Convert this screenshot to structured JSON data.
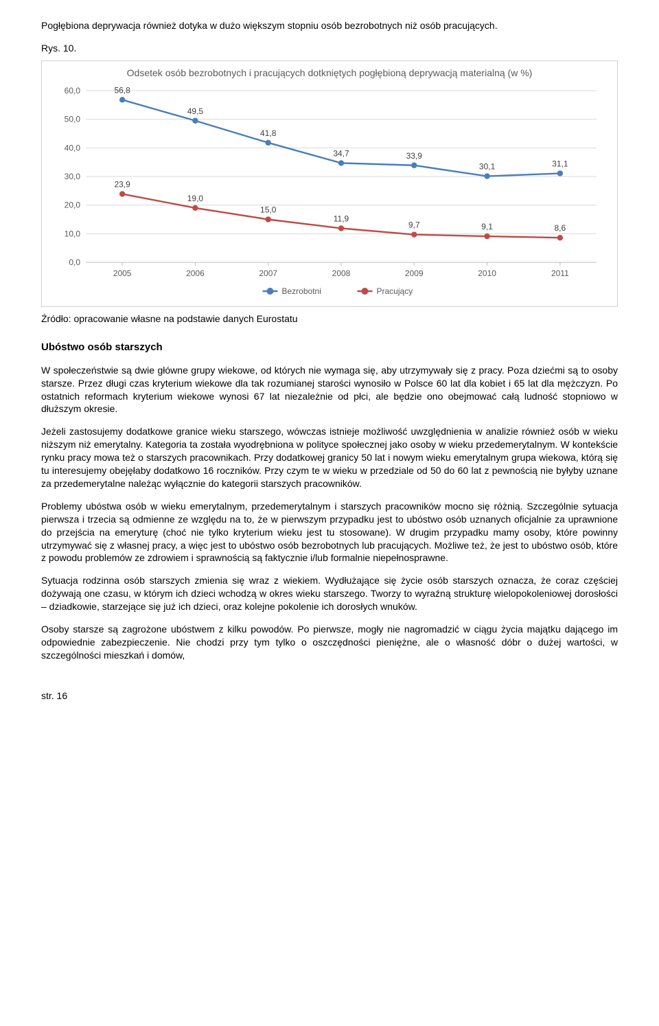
{
  "intro": "Pogłębiona deprywacja również dotyka w dużo większym stopniu osób bezrobotnych niż osób pracujących.",
  "figLabel": "Rys. 10.",
  "chart": {
    "type": "line",
    "title": "Odsetek osób bezrobotnych i pracujących dotkniętych pogłębioną deprywacją materialną (w %)",
    "categories": [
      "2005",
      "2006",
      "2007",
      "2008",
      "2009",
      "2010",
      "2011"
    ],
    "series": [
      {
        "name": "Bezrobotni",
        "color": "#4a7ebb",
        "values": [
          56.8,
          49.5,
          41.8,
          34.7,
          33.9,
          30.1,
          31.1
        ],
        "labels": [
          "56,8",
          "49,5",
          "41,8",
          "34,7",
          "33,9",
          "30,1",
          "31,1"
        ]
      },
      {
        "name": "Pracujący",
        "color": "#be4b48",
        "values": [
          23.9,
          19.0,
          15.0,
          11.9,
          9.7,
          9.1,
          8.6
        ],
        "labels": [
          "23,9",
          "19,0",
          "15,0",
          "11,9",
          "9,7",
          "9,1",
          "8,6"
        ]
      }
    ],
    "yTicks": [
      "0,0",
      "10,0",
      "20,0",
      "30,0",
      "40,0",
      "50,0",
      "60,0"
    ],
    "yTickVals": [
      0,
      10,
      20,
      30,
      40,
      50,
      60
    ],
    "ylim": [
      0,
      60
    ],
    "lineWidth": 2.4,
    "markerRadius": 4.2,
    "gridColor": "#d9d9d9",
    "axisText": "#595959",
    "labelText": "#404040",
    "fontSize": 12,
    "labelFontSize": 12,
    "legendMarker": 5
  },
  "source": "Źródło: opracowanie własne na podstawie danych Eurostatu",
  "sectionTitle": "Ubóstwo osób starszych",
  "paragraphs": [
    "W społeczeństwie są dwie główne grupy wiekowe, od których nie wymaga się, aby utrzymywały się z pracy. Poza dziećmi są to osoby starsze. Przez długi czas kryterium wiekowe dla tak rozumianej starości wynosiło w Polsce 60 lat dla kobiet i 65 lat dla mężczyzn. Po ostatnich reformach kryterium wiekowe wynosi 67 lat niezależnie od płci, ale będzie ono obejmować całą ludność stopniowo w dłuższym okresie.",
    "Jeżeli zastosujemy dodatkowe granice wieku starszego, wówczas istnieje możliwość uwzględnienia w analizie również osób w wieku niższym niż emerytalny. Kategoria ta została wyodrębniona w polityce społecznej jako osoby w wieku przedemerytalnym. W kontekście rynku pracy mowa też o starszych pracownikach. Przy dodatkowej granicy 50 lat i nowym wieku emerytalnym grupa wiekowa, którą się tu interesujemy obejęłaby dodatkowo 16 roczników. Przy czym te w wieku w przedziale od 50 do 60 lat z pewnością nie byłyby uznane za przedemerytalne należąc wyłącznie do kategorii starszych pracowników.",
    "Problemy ubóstwa osób w wieku emerytalnym, przedemerytalnym i starszych pracowników mocno się różnią. Szczególnie sytuacja pierwsza i trzecia są odmienne ze względu na to, że w pierwszym przypadku jest to ubóstwo osób uznanych oficjalnie za uprawnione do przejścia na emeryturę (choć nie tylko kryterium wieku jest tu stosowane). W drugim przypadku mamy osoby, które powinny utrzymywać się z własnej pracy, a więc jest to ubóstwo osób bezrobotnych lub pracujących. Możliwe też, że jest to ubóstwo osób, które z powodu problemów ze zdrowiem i sprawnością są faktycznie i/lub formalnie niepełnosprawne.",
    "Sytuacja rodzinna osób starszych zmienia się wraz z wiekiem. Wydłużające się życie osób starszych oznacza, że coraz częściej dożywają one czasu, w którym ich dzieci wchodzą w okres wieku starszego. Tworzy to wyraźną strukturę wielopokoleniowej dorosłości – dziadkowie, starzejące się już ich dzieci, oraz kolejne pokolenie ich dorosłych wnuków.",
    "Osoby starsze są zagrożone ubóstwem z kilku powodów. Po pierwsze, mogły nie nagromadzić w ciągu życia majątku dającego im odpowiednie zabezpieczenie. Nie chodzi przy tym tylko o oszczędności pieniężne, ale o własność dóbr o dużej wartości, w szczególności mieszkań i domów,"
  ],
  "footer": "str. 16"
}
